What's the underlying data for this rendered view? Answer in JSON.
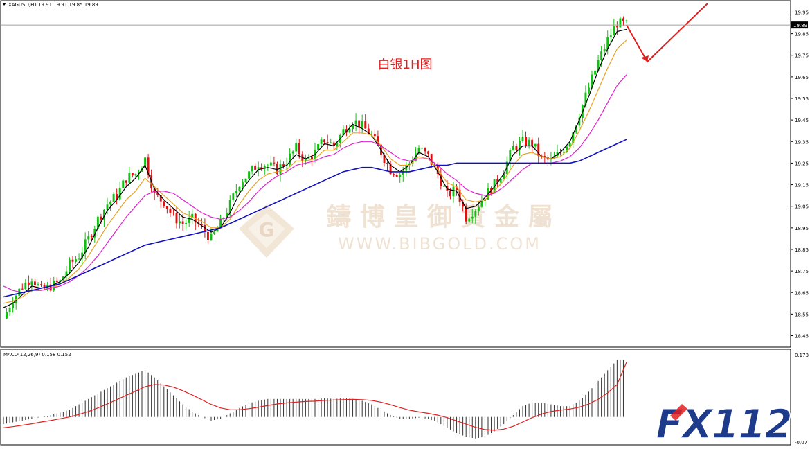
{
  "symbol_header": {
    "symbol": "XAGUSD,H1",
    "ohlc": "19.91 19.91 19.85 19.89"
  },
  "annotation": "白银1H图",
  "watermark": {
    "brand_cn": "鑄 博 皇 御 貴 金 屬",
    "url": "WWW.BIBGOLD.COM"
  },
  "logo": "FX112",
  "chart_data": [
    {
      "type": "candlestick",
      "title": "",
      "symbol": "XAGUSD",
      "timeframe": "H1",
      "current_price": 19.89,
      "current_price_label": "19.89",
      "ylim": [
        18.41,
        19.99
      ],
      "yticks": [
        "19.95",
        "19.85",
        "19.75",
        "19.65",
        "19.55",
        "19.45",
        "19.35",
        "19.25",
        "19.15",
        "19.05",
        "18.95",
        "18.85",
        "18.75",
        "18.65",
        "18.55",
        "18.45"
      ],
      "close_path": [
        18.53,
        18.62,
        18.68,
        18.72,
        18.66,
        18.68,
        18.7,
        18.78,
        18.82,
        18.9,
        18.99,
        19.06,
        19.1,
        19.18,
        19.2,
        19.27,
        19.1,
        19.07,
        19.0,
        18.97,
        18.99,
        18.95,
        18.9,
        18.97,
        19.06,
        19.16,
        19.2,
        19.25,
        19.24,
        19.22,
        19.26,
        19.32,
        19.26,
        19.3,
        19.36,
        19.33,
        19.4,
        19.45,
        19.42,
        19.38,
        19.3,
        19.22,
        19.2,
        19.25,
        19.32,
        19.28,
        19.2,
        19.1,
        19.13,
        19.0,
        19.04,
        19.1,
        19.15,
        19.22,
        19.32,
        19.35,
        19.34,
        19.27,
        19.26,
        19.3,
        19.36,
        19.48,
        19.6,
        19.72,
        19.82,
        19.9,
        19.89
      ],
      "series": [
        {
          "name": "",
          "kind": "MA",
          "color": "#000000",
          "values": [
            18.58,
            18.6,
            18.64,
            18.68,
            18.67,
            18.68,
            18.7,
            18.74,
            18.79,
            18.86,
            18.95,
            19.03,
            19.08,
            19.14,
            19.18,
            19.24,
            19.13,
            19.08,
            19.04,
            19.0,
            18.99,
            18.96,
            18.93,
            18.95,
            19.02,
            19.11,
            19.17,
            19.22,
            19.23,
            19.22,
            19.24,
            19.29,
            19.27,
            19.29,
            19.34,
            19.33,
            19.38,
            19.43,
            19.41,
            19.38,
            19.31,
            19.24,
            19.21,
            19.24,
            19.3,
            19.28,
            19.21,
            19.13,
            19.12,
            19.04,
            19.05,
            19.09,
            19.14,
            19.2,
            19.29,
            19.33,
            19.33,
            19.28,
            19.27,
            19.3,
            19.35,
            19.45,
            19.56,
            19.68,
            19.78,
            19.86,
            19.87
          ]
        },
        {
          "name": "",
          "kind": "MA",
          "color": "#e8a020",
          "values": [
            18.6,
            18.61,
            18.63,
            18.66,
            18.66,
            18.67,
            18.69,
            18.72,
            18.76,
            18.82,
            18.89,
            18.96,
            19.02,
            19.08,
            19.12,
            19.18,
            19.14,
            19.1,
            19.06,
            19.02,
            19.0,
            18.98,
            18.95,
            18.95,
            18.99,
            19.06,
            19.12,
            19.17,
            19.2,
            19.21,
            19.22,
            19.26,
            19.26,
            19.27,
            19.31,
            19.31,
            19.35,
            19.39,
            19.39,
            19.38,
            19.33,
            19.27,
            19.24,
            19.24,
            19.28,
            19.27,
            19.22,
            19.16,
            19.14,
            19.08,
            19.07,
            19.08,
            19.12,
            19.17,
            19.24,
            19.29,
            19.3,
            19.28,
            19.27,
            19.28,
            19.32,
            19.4,
            19.49,
            19.59,
            19.69,
            19.78,
            19.82
          ]
        },
        {
          "name": "",
          "kind": "MA",
          "color": "#e020d0",
          "values": [
            18.68,
            18.66,
            18.65,
            18.66,
            18.66,
            18.67,
            18.68,
            18.7,
            18.73,
            18.77,
            18.82,
            18.88,
            18.94,
            19.0,
            19.05,
            19.1,
            19.12,
            19.12,
            19.11,
            19.08,
            19.05,
            19.02,
            19.0,
            18.99,
            19.0,
            19.03,
            19.07,
            19.12,
            19.16,
            19.19,
            19.21,
            19.24,
            19.25,
            19.26,
            19.28,
            19.29,
            19.32,
            19.34,
            19.35,
            19.35,
            19.33,
            19.3,
            19.27,
            19.26,
            19.27,
            19.27,
            19.24,
            19.2,
            19.17,
            19.13,
            19.11,
            19.1,
            19.11,
            19.14,
            19.18,
            19.22,
            19.25,
            19.25,
            19.25,
            19.26,
            19.28,
            19.32,
            19.38,
            19.45,
            19.53,
            19.61,
            19.66
          ]
        },
        {
          "name": "",
          "kind": "MA",
          "color": "#1010c0",
          "values": [
            18.63,
            18.64,
            18.65,
            18.66,
            18.67,
            18.68,
            18.69,
            18.71,
            18.73,
            18.75,
            18.77,
            18.79,
            18.81,
            18.83,
            18.85,
            18.87,
            18.88,
            18.89,
            18.9,
            18.91,
            18.92,
            18.93,
            18.94,
            18.95,
            18.97,
            18.99,
            19.01,
            19.03,
            19.05,
            19.07,
            19.09,
            19.11,
            19.13,
            19.15,
            19.17,
            19.19,
            19.21,
            19.22,
            19.23,
            19.23,
            19.22,
            19.21,
            19.21,
            19.21,
            19.22,
            19.23,
            19.24,
            19.24,
            19.25,
            19.25,
            19.25,
            19.25,
            19.25,
            19.25,
            19.25,
            19.25,
            19.25,
            19.25,
            19.25,
            19.25,
            19.25,
            19.26,
            19.28,
            19.3,
            19.32,
            19.34,
            19.36
          ]
        }
      ],
      "forecast": {
        "color": "#e02020",
        "points": [
          [
            19.89
          ],
          [
            19.72
          ],
          [
            19.99
          ]
        ]
      }
    },
    {
      "type": "bar",
      "title": "MACD(12,26,9) 0.158 0.152",
      "indicator": "MACD(12,26,9)",
      "macd": 0.158,
      "signal": 0.152,
      "ylim": [
        -0.07,
        0.173
      ],
      "yticks": [
        "0.173",
        "-0.07"
      ],
      "histogram": [
        -0.02,
        -0.015,
        -0.01,
        -0.005,
        0.0,
        0.005,
        0.012,
        0.02,
        0.035,
        0.05,
        0.065,
        0.08,
        0.095,
        0.11,
        0.12,
        0.13,
        0.11,
        0.085,
        0.06,
        0.035,
        0.015,
        0.0,
        -0.01,
        -0.005,
        0.01,
        0.025,
        0.038,
        0.045,
        0.05,
        0.05,
        0.05,
        0.05,
        0.05,
        0.05,
        0.052,
        0.05,
        0.052,
        0.05,
        0.045,
        0.035,
        0.02,
        0.005,
        -0.005,
        -0.005,
        -0.002,
        -0.005,
        -0.015,
        -0.03,
        -0.045,
        -0.055,
        -0.06,
        -0.055,
        -0.04,
        -0.02,
        0.005,
        0.03,
        0.04,
        0.04,
        0.035,
        0.03,
        0.03,
        0.045,
        0.07,
        0.1,
        0.13,
        0.158,
        0.158
      ],
      "signal_line": [
        -0.03,
        -0.027,
        -0.023,
        -0.019,
        -0.014,
        -0.01,
        -0.005,
        0.0,
        0.007,
        0.015,
        0.025,
        0.036,
        0.048,
        0.06,
        0.072,
        0.084,
        0.09,
        0.089,
        0.083,
        0.073,
        0.061,
        0.048,
        0.035,
        0.025,
        0.02,
        0.02,
        0.023,
        0.027,
        0.032,
        0.036,
        0.039,
        0.041,
        0.043,
        0.044,
        0.046,
        0.047,
        0.048,
        0.049,
        0.048,
        0.046,
        0.041,
        0.034,
        0.026,
        0.019,
        0.014,
        0.01,
        0.005,
        -0.002,
        -0.011,
        -0.02,
        -0.029,
        -0.035,
        -0.037,
        -0.034,
        -0.026,
        -0.014,
        -0.002,
        0.008,
        0.015,
        0.019,
        0.022,
        0.027,
        0.036,
        0.049,
        0.067,
        0.09,
        0.152
      ]
    }
  ]
}
